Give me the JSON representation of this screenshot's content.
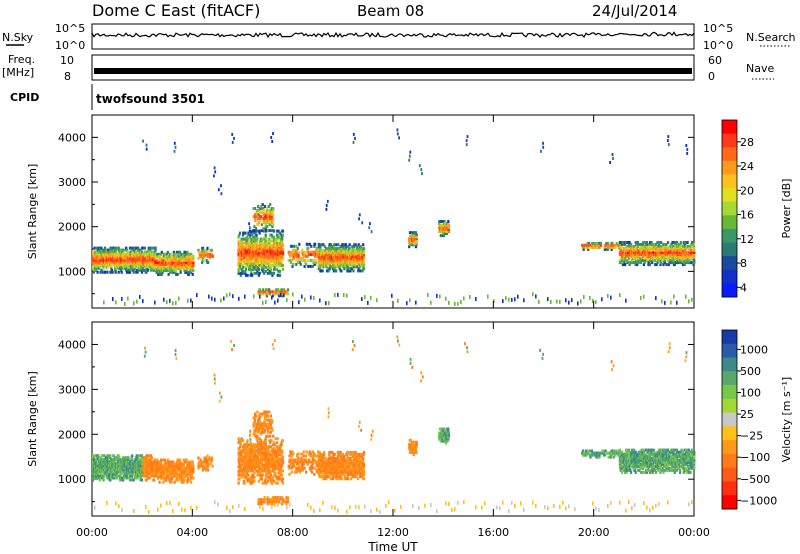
{
  "header": {
    "title": "Dome C East (fitACF)",
    "beam": "Beam 08",
    "date": "24/Jul/2014"
  },
  "aux": {
    "nsky_label": "N.Sky",
    "nsky_ticks": [
      "10^5",
      "10^0"
    ],
    "nsearch_label": "N.Search",
    "nsearch_ticks": [
      "10^5",
      "10^0"
    ],
    "freq_label_1": "Freq.",
    "freq_label_2": "[MHz]",
    "freq_ticks": [
      "10",
      "8"
    ],
    "nave_label": "Nave",
    "nave_ticks": [
      "60",
      "0"
    ],
    "cpid_label": "CPID",
    "cpid_value": "twofsound 3501"
  },
  "chart_data": [
    {
      "type": "heatmap",
      "name_shown": "Power",
      "ylabel": "Slant Range [km]",
      "ylim": [
        180,
        4500
      ],
      "yticks": [
        1000,
        2000,
        3000,
        4000
      ],
      "colorbar_label": "Power [dB]",
      "colorbar_ticks": [
        "28",
        "24",
        "20",
        "16",
        "12",
        "8",
        "4"
      ],
      "colorbar_colors": [
        "#ff0000",
        "#ff3a1a",
        "#ff6a1a",
        "#ff9a1a",
        "#ffc020",
        "#e0e020",
        "#a8d838",
        "#68b838",
        "#3a9868",
        "#2a7a78",
        "#1a4a9a",
        "#1030c8",
        "#0a1aff"
      ]
    },
    {
      "type": "heatmap",
      "name_shown": "Velocity",
      "ylabel": "Slant Range [km]",
      "ylim": [
        180,
        4500
      ],
      "yticks": [
        1000,
        2000,
        3000,
        4000
      ],
      "colorbar_label": "Velocity [m s⁻¹]",
      "colorbar_ticks": [
        "1000",
        "500",
        "100",
        "25",
        "−25",
        "−100",
        "−500",
        "−1000"
      ],
      "colorbar_colors": [
        "#1a3aa8",
        "#2a5aa8",
        "#3a8a8a",
        "#5aa868",
        "#78c848",
        "#a0d838",
        "#c8c8c8",
        "#ffc018",
        "#ff9a18",
        "#ff7a18",
        "#ff5a18",
        "#ff3010",
        "#ff0000"
      ]
    }
  ],
  "time_axis": {
    "ticks": [
      "00:00",
      "04:00",
      "08:00",
      "12:00",
      "16:00",
      "20:00",
      "00:00"
    ],
    "label": "Time UT",
    "range_hours": [
      0,
      24
    ]
  }
}
